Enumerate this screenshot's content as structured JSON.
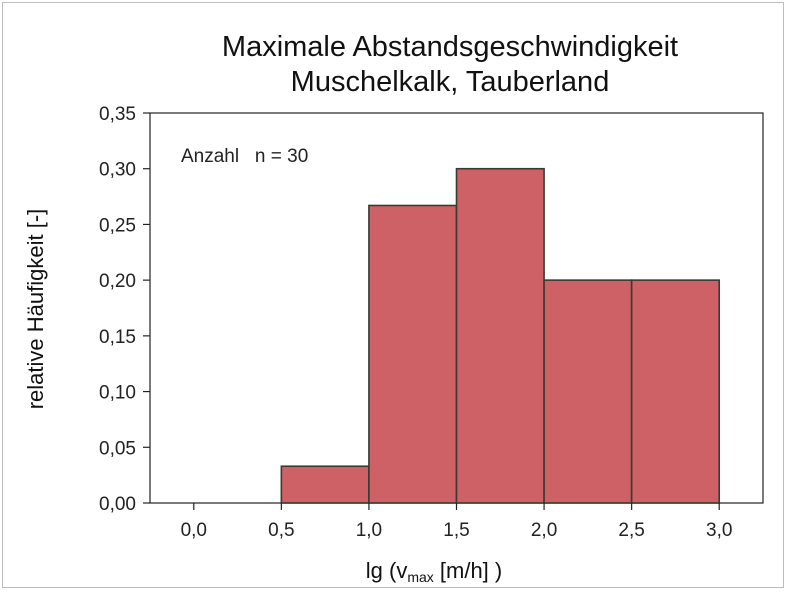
{
  "chart_data": {
    "type": "bar",
    "title": "Maximale Abstandsgeschwindigkeit",
    "subtitle": "Muschelkalk, Tauberland",
    "ylabel": "relative Häufigkeit [-]",
    "xlabel": {
      "prefix": "lg (v",
      "subscript": "max",
      "suffix": " [m/h] )"
    },
    "annotation": "Anzahl   n = 30",
    "bins": [
      {
        "from": 0.0,
        "to": 0.5,
        "value": 0.0
      },
      {
        "from": 0.5,
        "to": 1.0,
        "value": 0.033
      },
      {
        "from": 1.0,
        "to": 1.5,
        "value": 0.267
      },
      {
        "from": 1.5,
        "to": 2.0,
        "value": 0.3
      },
      {
        "from": 2.0,
        "to": 2.5,
        "value": 0.2
      },
      {
        "from": 2.5,
        "to": 3.0,
        "value": 0.2
      }
    ],
    "xlim": [
      -0.25,
      3.25
    ],
    "ylim": [
      0,
      0.35
    ],
    "xticks": [
      {
        "value": 0.0,
        "label": "0,0"
      },
      {
        "value": 0.5,
        "label": "0,5"
      },
      {
        "value": 1.0,
        "label": "1,0"
      },
      {
        "value": 1.5,
        "label": "1,5"
      },
      {
        "value": 2.0,
        "label": "2,0"
      },
      {
        "value": 2.5,
        "label": "2,5"
      },
      {
        "value": 3.0,
        "label": "3,0"
      }
    ],
    "yticks": [
      {
        "value": 0.0,
        "label": "0,00"
      },
      {
        "value": 0.05,
        "label": "0,05"
      },
      {
        "value": 0.1,
        "label": "0,10"
      },
      {
        "value": 0.15,
        "label": "0,15"
      },
      {
        "value": 0.2,
        "label": "0,20"
      },
      {
        "value": 0.25,
        "label": "0,25"
      },
      {
        "value": 0.3,
        "label": "0,30"
      },
      {
        "value": 0.35,
        "label": "0,35"
      }
    ],
    "grid": false,
    "colors": {
      "bar_fill": "#cd6165",
      "bar_edge": "#3a3a32",
      "axis": "#222222"
    }
  }
}
